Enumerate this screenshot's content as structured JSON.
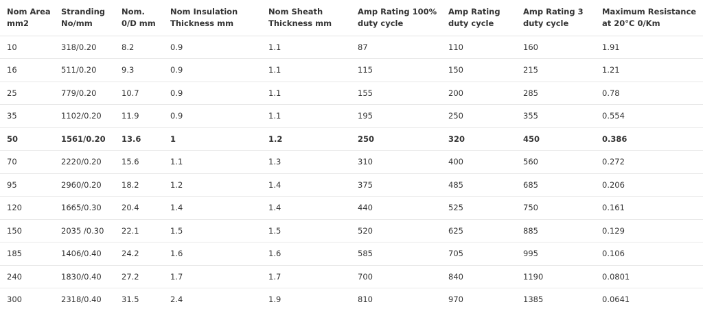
{
  "table": {
    "header": [
      [
        "Nom Area",
        "mm2"
      ],
      [
        "Stranding",
        "No/mm"
      ],
      [
        "Nom.",
        "0/D mm"
      ],
      [
        "Nom Insulation",
        "Thickness mm"
      ],
      [
        "Nom Sheath",
        "Thickness mm"
      ],
      [
        "Amp Rating 100%",
        "duty cycle"
      ],
      [
        "Amp Rating",
        "duty cycle"
      ],
      [
        "Amp Rating 3",
        "duty cycle"
      ],
      [
        "Maximum Resistance",
        "at 20°C 0/Km"
      ]
    ],
    "rows": [
      {
        "cells": [
          "10",
          "318/0.20",
          "8.2",
          "0.9",
          "1.1",
          "87",
          "110",
          "160",
          "1.91"
        ]
      },
      {
        "cells": [
          "16",
          "511/0.20",
          "9.3",
          "0.9",
          "1.1",
          "115",
          "150",
          "215",
          "1.21"
        ]
      },
      {
        "cells": [
          "25",
          "779/0.20",
          "10.7",
          "0.9",
          "1.1",
          "155",
          "200",
          "285",
          "0.78"
        ]
      },
      {
        "cells": [
          "35",
          "1102/0.20",
          "11.9",
          "0.9",
          "1.1",
          "195",
          "250",
          "355",
          "0.554"
        ]
      },
      {
        "cells": [
          "50",
          "1561/0.20",
          "13.6",
          "1",
          "1.2",
          "250",
          "320",
          "450",
          "0.386"
        ],
        "bold": true
      },
      {
        "cells": [
          "70",
          "2220/0.20",
          "15.6",
          "1.1",
          "1.3",
          "310",
          "400",
          "560",
          "0.272"
        ]
      },
      {
        "cells": [
          "95",
          "2960/0.20",
          "18.2",
          "1.2",
          "1.4",
          "375",
          "485",
          "685",
          "0.206"
        ]
      },
      {
        "cells": [
          "120",
          "1665/0.30",
          "20.4",
          "1.4",
          "1.4",
          "440",
          "525",
          "750",
          "0.161"
        ]
      },
      {
        "cells": [
          "150",
          "2035 /0.30",
          "22.1",
          "1.5",
          "1.5",
          "520",
          "625",
          "885",
          "0.129"
        ]
      },
      {
        "cells": [
          "185",
          "1406/0.40",
          "24.2",
          "1.6",
          "1.6",
          "585",
          "705",
          "995",
          "0.106"
        ]
      },
      {
        "cells": [
          "240",
          "1830/0.40",
          "27.2",
          "1.7",
          "1.7",
          "700",
          "840",
          "1190",
          "0.0801"
        ]
      },
      {
        "cells": [
          "300",
          "2318/0.40",
          "31.5",
          "2.4",
          "1.9",
          "810",
          "970",
          "1385",
          "0.0641"
        ]
      }
    ]
  }
}
